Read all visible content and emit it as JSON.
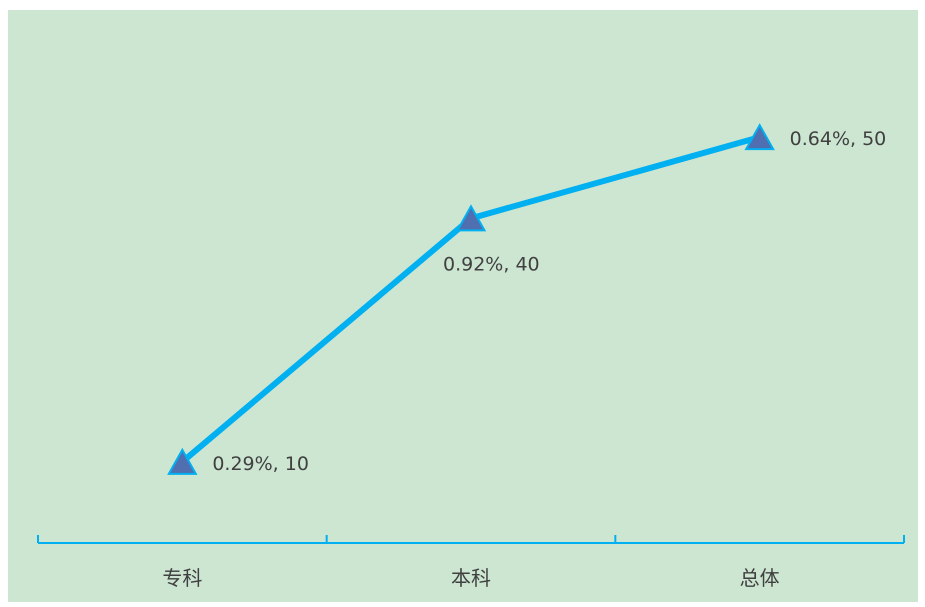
{
  "chart_data": {
    "type": "line",
    "categories": [
      "专科",
      "本科",
      "总体"
    ],
    "series": [
      {
        "values": [
          10,
          40,
          50
        ],
        "data_labels": [
          "0.29%, 10",
          "0.92%, 40",
          "0.64%, 50"
        ],
        "marker": "triangle"
      }
    ],
    "ylim": [
      0,
      60
    ],
    "grid": false,
    "legend": "none",
    "colors": {
      "plot_background": "#cde6d2",
      "line": "#00b0f0",
      "marker_fill": "#4f6fb0",
      "marker_stroke": "#00b0f0",
      "axis": "#00b0f0",
      "text": "#404040"
    }
  }
}
